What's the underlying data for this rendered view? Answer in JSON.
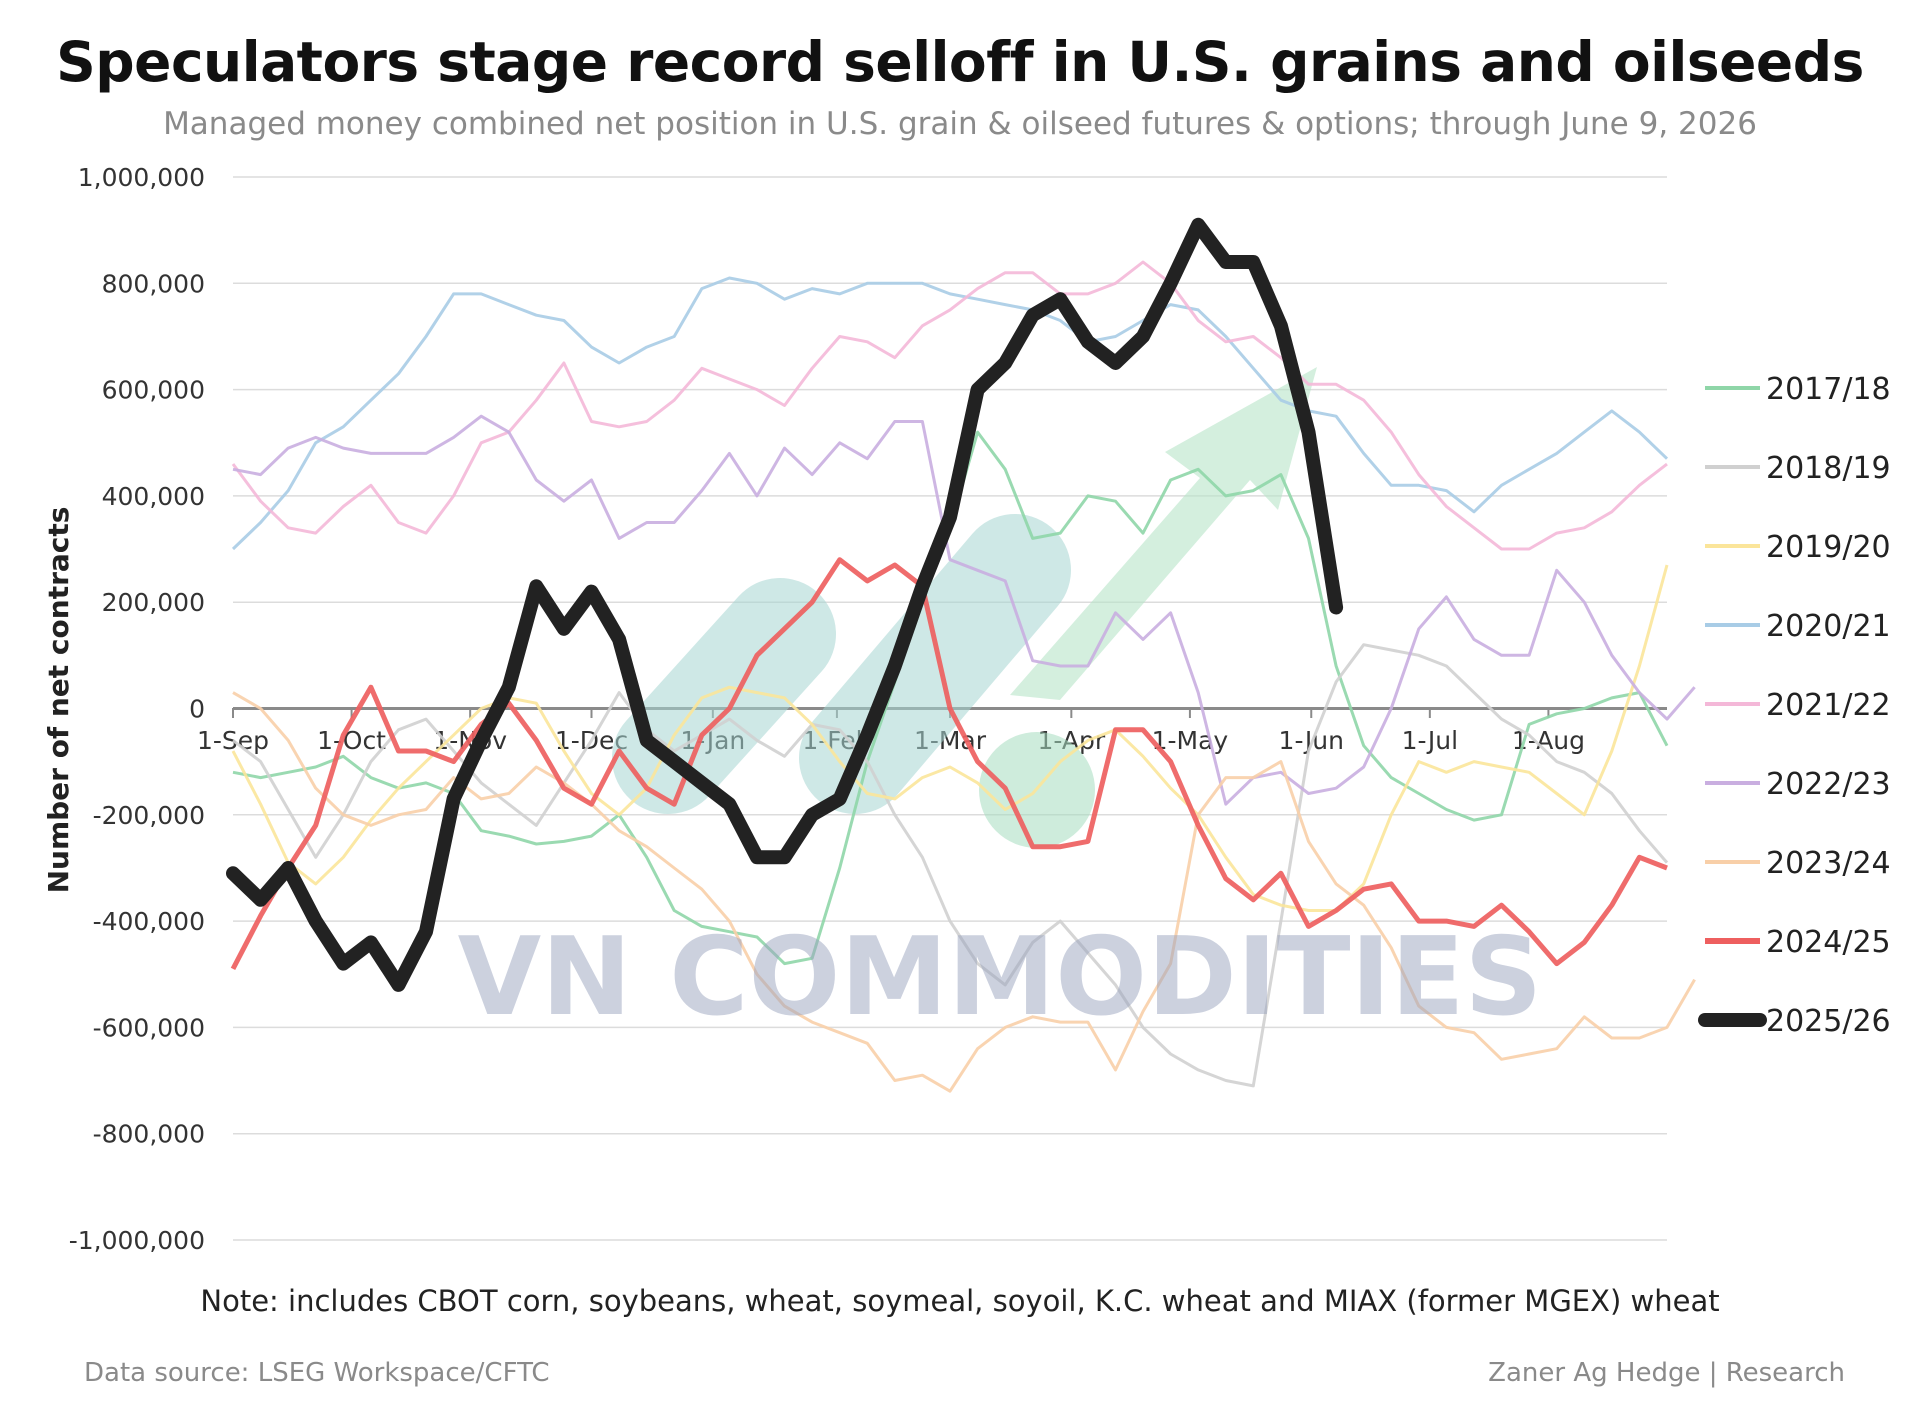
{
  "header": {
    "title": "Speculators stage record selloff in U.S. grains and oilseeds",
    "subtitle": "Managed money combined net position in U.S. grain & oilseed futures & options; through June 9, 2026"
  },
  "footer": {
    "note": "Note: includes CBOT corn, soybeans, wheat, soymeal, soyoil, K.C. wheat and MIAX (former MGEX) wheat",
    "source": "Data source: LSEG Workspace/CFTC",
    "credit": "Zaner Ag Hedge | Research"
  },
  "watermark": "VN COMMODITIES",
  "chart_data": {
    "type": "line",
    "title": "Speculators stage record selloff in U.S. grains and oilseeds",
    "subtitle": "Managed money combined net position in U.S. grain & oilseed futures & options; through June 9, 2026",
    "xlabel": "",
    "ylabel": "Number of net contracts",
    "ylim": [
      -1000000,
      1000000
    ],
    "yticks": [
      1000000,
      800000,
      600000,
      400000,
      200000,
      0,
      -200000,
      -400000,
      -600000,
      -800000,
      -1000000
    ],
    "ytick_labels": [
      "1,000,000",
      "800,000",
      "600,000",
      "400,000",
      "200,000",
      "0",
      "-200,000",
      "-400,000",
      "-600,000",
      "-800,000",
      "-1,000,000"
    ],
    "xlim": [
      0,
      52
    ],
    "x_unit": "week of marketing year (starting 1-Sep)",
    "xticks": [
      0,
      4.3,
      8.6,
      13,
      17.4,
      21.9,
      26,
      30.4,
      34.7,
      39.1,
      43.4,
      47.7
    ],
    "xtick_labels": [
      "1-Sep",
      "1-Oct",
      "1-Nov",
      "1-Dec",
      "1-Jan",
      "1-Feb",
      "1-Mar",
      "1-Apr",
      "1-May",
      "1-Jun",
      "1-Jul",
      "1-Aug"
    ],
    "grid": "horizontal",
    "legend_position": "right",
    "series": [
      {
        "name": "2017/18",
        "color": "#8fd6a8",
        "width": 3,
        "values": [
          -120000,
          -130000,
          -120000,
          -110000,
          -90000,
          -130000,
          -150000,
          -140000,
          -160000,
          -230000,
          -240000,
          -255000,
          -250000,
          -240000,
          -200000,
          -280000,
          -380000,
          -410000,
          -420000,
          -430000,
          -480000,
          -470000,
          -300000,
          -100000,
          50000,
          200000,
          340000,
          520000,
          450000,
          320000,
          330000,
          400000,
          390000,
          330000,
          430000,
          450000,
          400000,
          410000,
          440000,
          320000,
          80000,
          -70000,
          -130000,
          -160000,
          -190000,
          -210000,
          -200000,
          -30000,
          -10000,
          0,
          20000,
          30000,
          -70000
        ]
      },
      {
        "name": "2018/19",
        "color": "#d0d0d0",
        "width": 3,
        "values": [
          -60000,
          -100000,
          -190000,
          -280000,
          -200000,
          -100000,
          -40000,
          -20000,
          -80000,
          -140000,
          -180000,
          -220000,
          -140000,
          -60000,
          30000,
          -40000,
          -80000,
          -50000,
          -20000,
          -60000,
          -90000,
          -30000,
          -40000,
          -100000,
          -200000,
          -280000,
          -400000,
          -480000,
          -520000,
          -440000,
          -400000,
          -460000,
          -520000,
          -600000,
          -650000,
          -680000,
          -700000,
          -710000,
          -400000,
          -80000,
          50000,
          120000,
          110000,
          100000,
          80000,
          30000,
          -20000,
          -50000,
          -100000,
          -120000,
          -160000,
          -230000,
          -290000
        ]
      },
      {
        "name": "2019/20",
        "color": "#fbe59a",
        "width": 3,
        "values": [
          -80000,
          -180000,
          -290000,
          -330000,
          -280000,
          -210000,
          -150000,
          -100000,
          -50000,
          0,
          20000,
          10000,
          -80000,
          -160000,
          -200000,
          -150000,
          -50000,
          20000,
          40000,
          30000,
          20000,
          -30000,
          -100000,
          -160000,
          -170000,
          -130000,
          -110000,
          -140000,
          -190000,
          -160000,
          -100000,
          -60000,
          -40000,
          -90000,
          -150000,
          -200000,
          -280000,
          -350000,
          -370000,
          -380000,
          -380000,
          -330000,
          -200000,
          -100000,
          -120000,
          -100000,
          -110000,
          -120000,
          -160000,
          -200000,
          -80000,
          80000,
          270000
        ]
      },
      {
        "name": "2020/21",
        "color": "#a8cce6",
        "width": 3,
        "values": [
          300000,
          350000,
          410000,
          500000,
          530000,
          580000,
          630000,
          700000,
          780000,
          780000,
          760000,
          740000,
          730000,
          680000,
          650000,
          680000,
          700000,
          790000,
          810000,
          800000,
          770000,
          790000,
          780000,
          800000,
          800000,
          800000,
          780000,
          770000,
          760000,
          750000,
          730000,
          690000,
          700000,
          730000,
          760000,
          750000,
          700000,
          640000,
          580000,
          560000,
          550000,
          480000,
          420000,
          420000,
          410000,
          370000,
          420000,
          450000,
          480000,
          520000,
          560000,
          520000,
          470000
        ]
      },
      {
        "name": "2021/22",
        "color": "#f4b8d8",
        "width": 3,
        "values": [
          460000,
          390000,
          340000,
          330000,
          380000,
          420000,
          350000,
          330000,
          400000,
          500000,
          520000,
          580000,
          650000,
          540000,
          530000,
          540000,
          580000,
          640000,
          620000,
          600000,
          570000,
          640000,
          700000,
          690000,
          660000,
          720000,
          750000,
          790000,
          820000,
          820000,
          780000,
          780000,
          800000,
          840000,
          800000,
          730000,
          690000,
          700000,
          660000,
          610000,
          610000,
          580000,
          520000,
          440000,
          380000,
          340000,
          300000,
          300000,
          330000,
          340000,
          370000,
          420000,
          460000
        ]
      },
      {
        "name": "2022/23",
        "color": "#c9aee0",
        "width": 3,
        "values": [
          450000,
          440000,
          490000,
          510000,
          490000,
          480000,
          480000,
          480000,
          510000,
          550000,
          520000,
          430000,
          390000,
          430000,
          320000,
          350000,
          350000,
          410000,
          480000,
          400000,
          490000,
          440000,
          500000,
          470000,
          540000,
          540000,
          280000,
          260000,
          240000,
          90000,
          80000,
          80000,
          180000,
          130000,
          180000,
          30000,
          -180000,
          -130000,
          -120000,
          -160000,
          -150000,
          -110000,
          0,
          150000,
          210000,
          130000,
          100000,
          100000,
          260000,
          200000,
          100000,
          30000,
          -20000,
          40000
        ]
      },
      {
        "name": "2023/24",
        "color": "#f8cfa8",
        "width": 3,
        "values": [
          30000,
          0,
          -60000,
          -150000,
          -200000,
          -220000,
          -200000,
          -190000,
          -130000,
          -170000,
          -160000,
          -110000,
          -140000,
          -180000,
          -230000,
          -260000,
          -300000,
          -340000,
          -400000,
          -500000,
          -560000,
          -590000,
          -610000,
          -630000,
          -700000,
          -690000,
          -720000,
          -640000,
          -600000,
          -580000,
          -590000,
          -590000,
          -680000,
          -570000,
          -480000,
          -200000,
          -130000,
          -130000,
          -100000,
          -250000,
          -330000,
          -370000,
          -450000,
          -560000,
          -600000,
          -610000,
          -660000,
          -650000,
          -640000,
          -580000,
          -620000,
          -620000,
          -600000,
          -510000
        ]
      },
      {
        "name": "2024/25",
        "color": "#ee5f5f",
        "width": 5,
        "values": [
          -490000,
          -390000,
          -300000,
          -220000,
          -50000,
          40000,
          -80000,
          -80000,
          -100000,
          -30000,
          10000,
          -60000,
          -150000,
          -180000,
          -80000,
          -150000,
          -180000,
          -50000,
          0,
          100000,
          150000,
          200000,
          280000,
          240000,
          270000,
          230000,
          0,
          -100000,
          -150000,
          -260000,
          -260000,
          -250000,
          -40000,
          -40000,
          -100000,
          -220000,
          -320000,
          -360000,
          -310000,
          -410000,
          -380000,
          -340000,
          -330000,
          -400000,
          -400000,
          -410000,
          -370000,
          -420000,
          -480000,
          -440000,
          -370000,
          -280000,
          -300000
        ]
      },
      {
        "name": "2025/26",
        "color": "#222222",
        "width": 14,
        "values": [
          -310000,
          -360000,
          -300000,
          -400000,
          -480000,
          -440000,
          -520000,
          -420000,
          -170000,
          -60000,
          40000,
          230000,
          150000,
          220000,
          130000,
          -60000,
          -100000,
          -140000,
          -180000,
          -280000,
          -280000,
          -200000,
          -170000,
          -50000,
          80000,
          230000,
          360000,
          600000,
          650000,
          740000,
          770000,
          690000,
          650000,
          700000,
          800000,
          910000,
          840000,
          840000,
          720000,
          520000,
          190000
        ]
      }
    ]
  }
}
